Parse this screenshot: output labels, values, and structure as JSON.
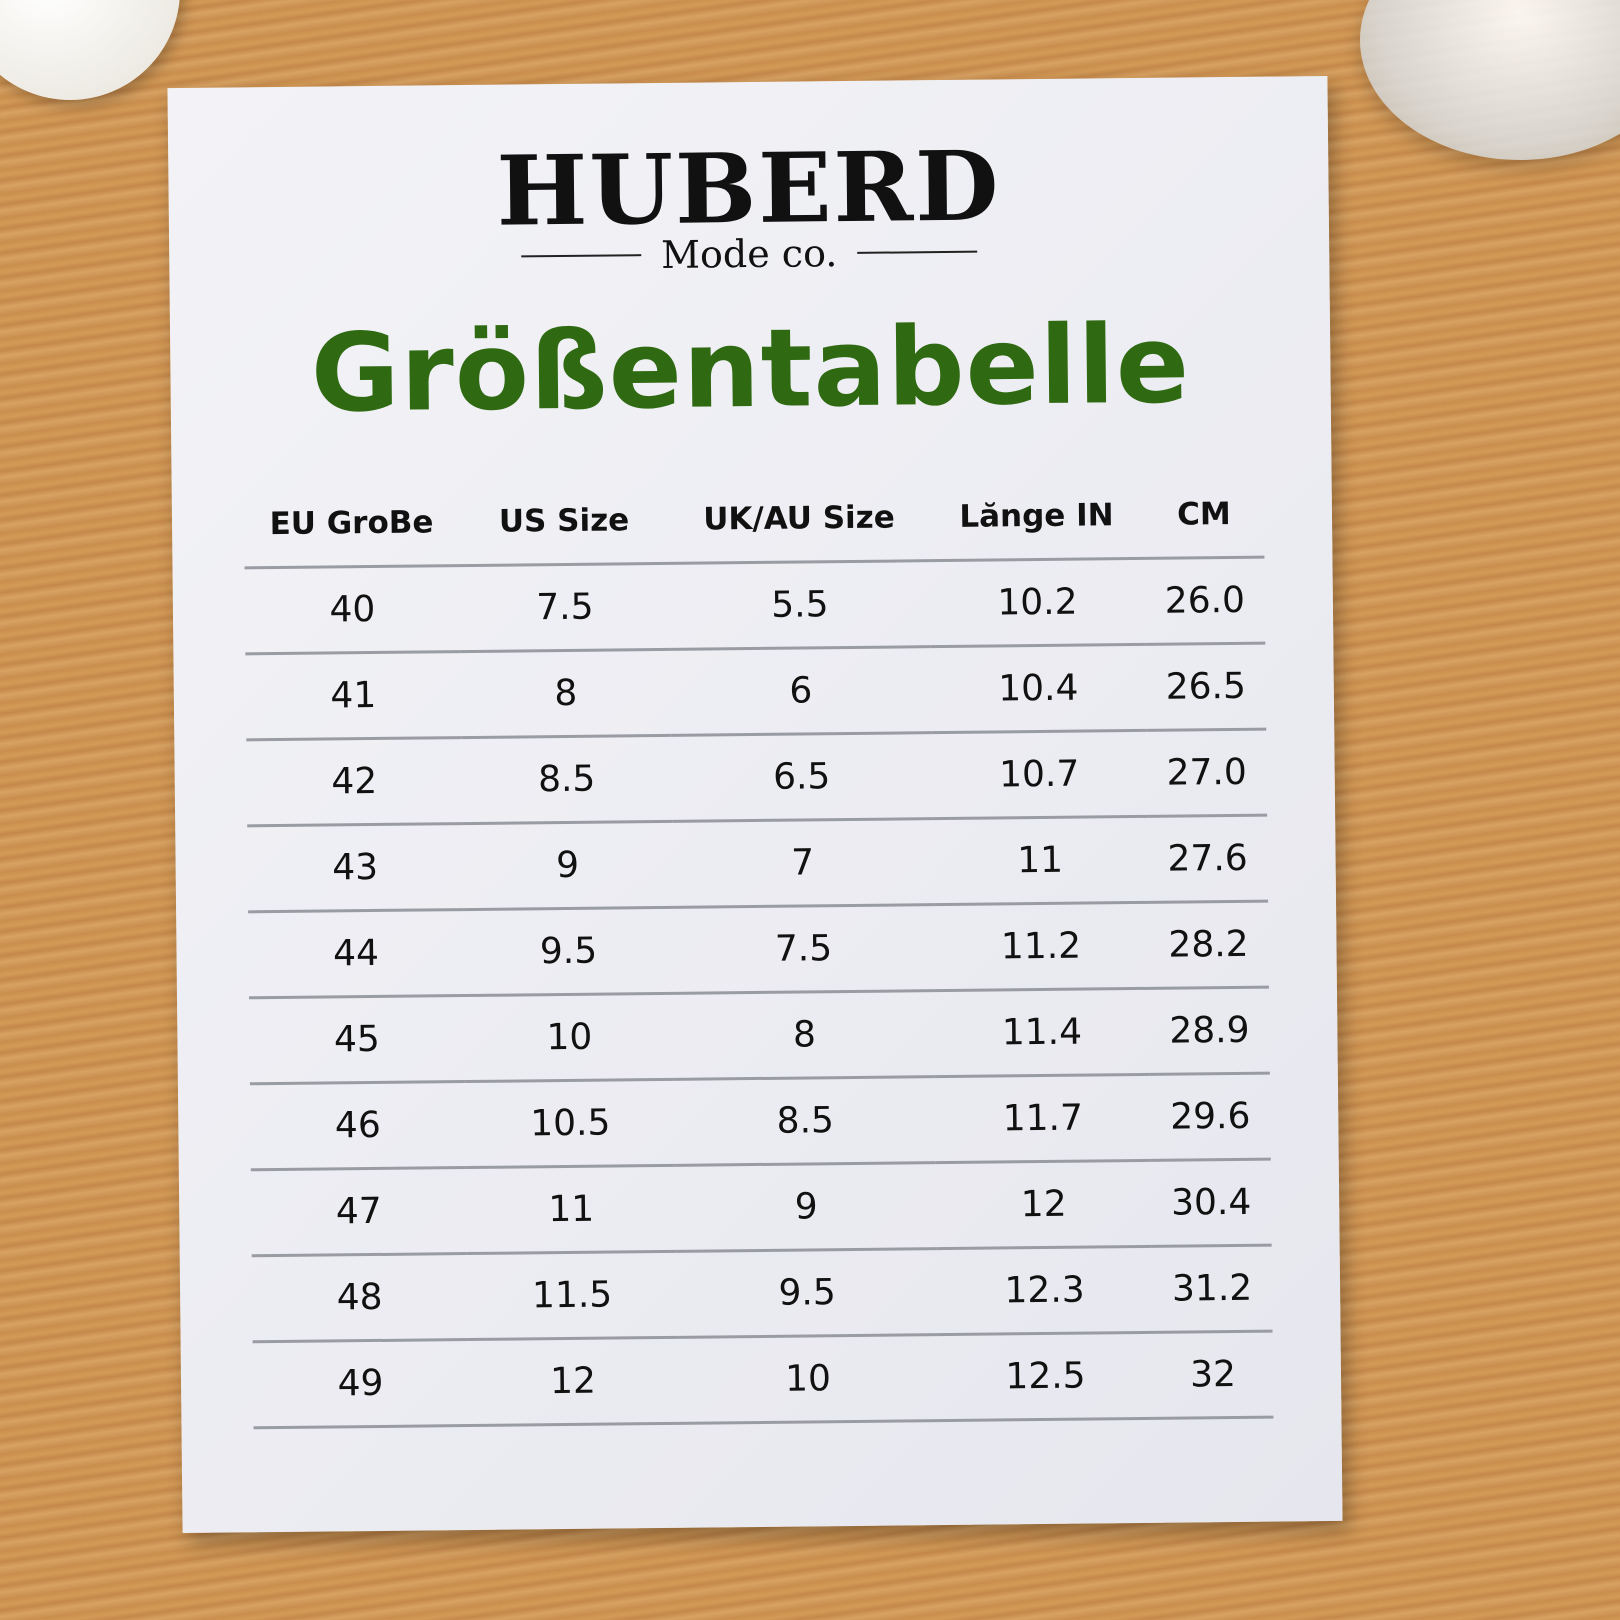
{
  "brand": {
    "name": "HUBERD",
    "subtitle": "Mode co."
  },
  "title": "Größentabelle",
  "colors": {
    "title": "#2f6a12",
    "text": "#111111",
    "paper": "#eeeef3"
  },
  "table": {
    "headers": [
      "EU GroBe",
      "US Size",
      "UK/AU Size",
      "Lănge IN",
      "CM"
    ],
    "rows": [
      [
        "40",
        "7.5",
        "5.5",
        "10.2",
        "26.0"
      ],
      [
        "41",
        "8",
        "6",
        "10.4",
        "26.5"
      ],
      [
        "42",
        "8.5",
        "6.5",
        "10.7",
        "27.0"
      ],
      [
        "43",
        "9",
        "7",
        "11",
        "27.6"
      ],
      [
        "44",
        "9.5",
        "7.5",
        "11.2",
        "28.2"
      ],
      [
        "45",
        "10",
        "8",
        "11.4",
        "28.9"
      ],
      [
        "46",
        "10.5",
        "8.5",
        "11.7",
        "29.6"
      ],
      [
        "47",
        "11",
        "9",
        "12",
        "30.4"
      ],
      [
        "48",
        "11.5",
        "9.5",
        "12.3",
        "31.2"
      ],
      [
        "49",
        "12",
        "10",
        "12.5",
        "32"
      ]
    ]
  }
}
